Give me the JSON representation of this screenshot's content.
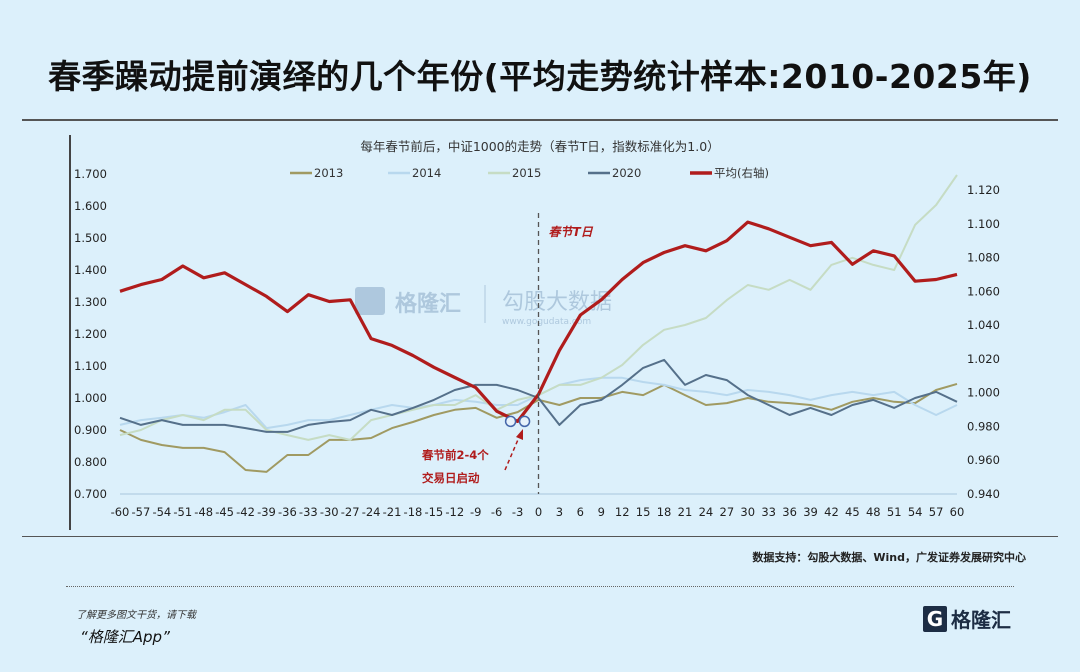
{
  "title": "春季躁动提前演绎的几个年份(平均走势统计样本:2010-2025年)",
  "source": "数据支持：勾股大数据、Wind，广发证券发展研究中心",
  "footer": {
    "line1": "了解更多图文干货，请下载",
    "line2": "“格隆汇App”",
    "logo_text": "格隆汇",
    "logo_letter": "G"
  },
  "watermark": {
    "brand": "格隆汇",
    "brand2": "勾股大数据",
    "url": "www.gogudata.com"
  },
  "chart_data": {
    "type": "line",
    "title": "每年春节前后，中证1000的走势（春节T日，指数标准化为1.0）",
    "x": [
      -60,
      -57,
      -54,
      -51,
      -48,
      -45,
      -42,
      -39,
      -36,
      -33,
      -30,
      -27,
      -24,
      -21,
      -18,
      -15,
      -12,
      -9,
      -6,
      -3,
      0,
      3,
      6,
      9,
      12,
      15,
      18,
      21,
      24,
      27,
      30,
      33,
      36,
      39,
      42,
      45,
      48,
      51,
      54,
      57,
      60
    ],
    "x_ticks": [
      -60,
      -57,
      -54,
      -51,
      -48,
      -45,
      -42,
      -39,
      -36,
      -33,
      -30,
      -27,
      -24,
      -21,
      -18,
      -15,
      -12,
      -9,
      -6,
      -3,
      0,
      3,
      6,
      9,
      12,
      15,
      18,
      21,
      24,
      27,
      30,
      33,
      36,
      39,
      42,
      45,
      48,
      51,
      54,
      57,
      60
    ],
    "xlim": [
      -60,
      60
    ],
    "y_left": {
      "lim": [
        0.7,
        1.7
      ],
      "ticks": [
        "0.700",
        "0.800",
        "0.900",
        "1.000",
        "1.100",
        "1.200",
        "1.300",
        "1.400",
        "1.500",
        "1.600",
        "1.700"
      ]
    },
    "y_right": {
      "lim": [
        0.94,
        1.12
      ],
      "ticks": [
        "0.940",
        "0.960",
        "0.980",
        "1.000",
        "1.020",
        "1.040",
        "1.060",
        "1.080",
        "1.100",
        "1.120"
      ]
    },
    "legend_position": "top",
    "grid": false,
    "series": [
      {
        "name": "2013",
        "color": "#a09a62",
        "axis": "left",
        "values": [
          0.9,
          0.869,
          0.853,
          0.844,
          0.844,
          0.831,
          0.775,
          0.769,
          0.822,
          0.822,
          0.869,
          0.869,
          0.875,
          0.906,
          0.925,
          0.947,
          0.963,
          0.969,
          0.938,
          0.956,
          0.994,
          0.978,
          1.0,
          1.0,
          1.019,
          1.009,
          1.041,
          1.009,
          0.978,
          0.984,
          1.0,
          0.988,
          0.984,
          0.978,
          0.963,
          0.988,
          1.0,
          0.988,
          0.984,
          1.025,
          1.044
        ]
      },
      {
        "name": "2014",
        "color": "#b8d8ee",
        "axis": "left",
        "values": [
          0.916,
          0.931,
          0.938,
          0.947,
          0.938,
          0.956,
          0.978,
          0.906,
          0.916,
          0.931,
          0.931,
          0.947,
          0.963,
          0.978,
          0.969,
          0.978,
          0.994,
          0.988,
          0.978,
          0.978,
          1.009,
          1.041,
          1.056,
          1.063,
          1.063,
          1.05,
          1.041,
          1.025,
          1.019,
          1.009,
          1.025,
          1.019,
          1.009,
          0.994,
          1.009,
          1.019,
          1.009,
          1.019,
          0.978,
          0.947,
          0.978
        ]
      },
      {
        "name": "2015",
        "color": "#c6dcc4",
        "axis": "left",
        "values": [
          0.884,
          0.9,
          0.931,
          0.947,
          0.931,
          0.963,
          0.963,
          0.9,
          0.884,
          0.869,
          0.884,
          0.869,
          0.931,
          0.947,
          0.963,
          0.978,
          0.978,
          1.009,
          0.963,
          0.994,
          1.009,
          1.041,
          1.041,
          1.063,
          1.103,
          1.166,
          1.213,
          1.228,
          1.25,
          1.306,
          1.353,
          1.338,
          1.369,
          1.338,
          1.416,
          1.438,
          1.416,
          1.4,
          1.541,
          1.603,
          1.697
        ]
      },
      {
        "name": "2020",
        "color": "#55708a",
        "axis": "left",
        "values": [
          0.938,
          0.916,
          0.931,
          0.916,
          0.916,
          0.916,
          0.906,
          0.894,
          0.894,
          0.916,
          0.925,
          0.931,
          0.963,
          0.947,
          0.969,
          0.994,
          1.025,
          1.041,
          1.041,
          1.025,
          1.0,
          0.916,
          0.978,
          0.994,
          1.041,
          1.094,
          1.119,
          1.041,
          1.072,
          1.056,
          1.009,
          0.978,
          0.947,
          0.969,
          0.947,
          0.978,
          0.994,
          0.969,
          1.0,
          1.019,
          0.988
        ]
      },
      {
        "name": "平均(右轴)",
        "color": "#b01c1c",
        "axis": "right",
        "values": [
          1.06,
          1.064,
          1.067,
          1.075,
          1.068,
          1.071,
          1.064,
          1.057,
          1.048,
          1.058,
          1.054,
          1.055,
          1.032,
          1.028,
          1.022,
          1.015,
          1.009,
          1.003,
          0.989,
          0.983,
          0.999,
          1.025,
          1.046,
          1.055,
          1.067,
          1.077,
          1.083,
          1.087,
          1.084,
          1.09,
          1.101,
          1.097,
          1.092,
          1.087,
          1.089,
          1.076,
          1.084,
          1.081,
          1.066,
          1.067,
          1.07
        ]
      }
    ],
    "annotations": {
      "t_day": "春节T日",
      "start_line1": "春节前2-4个",
      "start_line2": "交易日启动",
      "start_days": [
        -4,
        -2
      ],
      "start_values": [
        0.983,
        0.983
      ]
    }
  }
}
